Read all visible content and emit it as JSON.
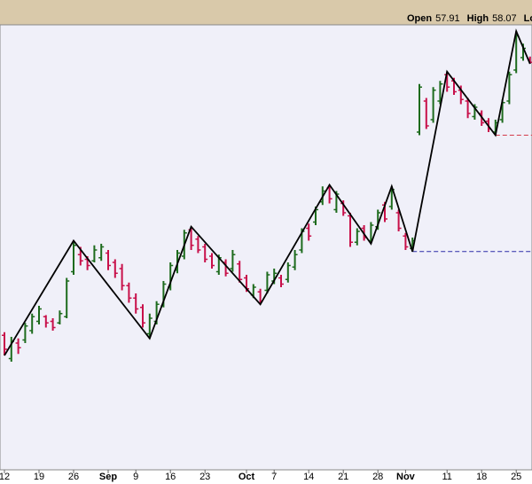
{
  "chart_data": {
    "type": "ohlc",
    "header": [
      {
        "label": "Open",
        "value": 57.91
      },
      {
        "label": "High",
        "value": 58.07
      },
      {
        "label": "Low"
      }
    ],
    "categories": [
      "12",
      null,
      null,
      null,
      null,
      "19",
      null,
      null,
      null,
      null,
      "26",
      null,
      null,
      null,
      null,
      "Sep",
      null,
      null,
      null,
      "9",
      null,
      null,
      null,
      null,
      "16",
      null,
      null,
      null,
      null,
      "23",
      null,
      null,
      null,
      null,
      null,
      "Oct",
      null,
      null,
      null,
      "7",
      null,
      null,
      null,
      null,
      "14",
      null,
      null,
      null,
      null,
      "21",
      null,
      null,
      null,
      null,
      "28",
      null,
      null,
      null,
      "Nov",
      null,
      null,
      null,
      null,
      null,
      "11",
      null,
      null,
      null,
      null,
      "18",
      null,
      null,
      null,
      null,
      "25",
      null,
      null
    ],
    "open": [
      40.1,
      38.6,
      39.6,
      39.8,
      40.4,
      41.0,
      41.3,
      41.0,
      40.9,
      41.3,
      44.2,
      45.3,
      45.0,
      44.9,
      45.1,
      45.4,
      44.8,
      44.4,
      43.3,
      42.5,
      41.9,
      40.2,
      41.0,
      42.0,
      43.2,
      44.3,
      45.2,
      46.9,
      46.3,
      45.8,
      45.2,
      44.2,
      44.8,
      44.4,
      44.7,
      43.8,
      42.7,
      42.9,
      43.0,
      43.6,
      43.8,
      43.7,
      44.5,
      45.6,
      47.0,
      47.4,
      48.7,
      49.6,
      48.2,
      48.6,
      47.8,
      46.1,
      47.0,
      46.2,
      47.1,
      48.5,
      48.4,
      48.0,
      46.5,
      45.7,
      53.2,
      55.2,
      54.0,
      55.2,
      56.9,
      56.5,
      55.9,
      55.2,
      54.2,
      54.4,
      53.9,
      53.2,
      54.0,
      55.2,
      57.2,
      58.0,
      57.91
    ],
    "high": [
      40.3,
      40.0,
      39.9,
      40.9,
      41.5,
      42.0,
      41.4,
      41.2,
      41.7,
      43.8,
      46.2,
      45.8,
      45.2,
      45.9,
      46.0,
      45.6,
      45.0,
      44.7,
      43.5,
      42.8,
      42.1,
      41.5,
      42.3,
      43.6,
      44.8,
      45.6,
      46.9,
      47.1,
      46.5,
      46.0,
      45.4,
      45.3,
      45.0,
      45.6,
      44.9,
      44.0,
      43.4,
      43.1,
      44.2,
      44.4,
      44.0,
      44.8,
      45.6,
      47.0,
      47.3,
      48.4,
      49.7,
      49.8,
      49.4,
      48.8,
      48.0,
      47.0,
      47.2,
      47.4,
      48.2,
      48.7,
      49.7,
      48.2,
      46.7,
      46.4,
      56.3,
      55.4,
      56.1,
      56.5,
      57.1,
      56.7,
      56.2,
      55.4,
      55.0,
      54.6,
      54.1,
      54.0,
      55.3,
      57.1,
      59.7,
      58.9,
      58.07
    ],
    "low": [
      38.8,
      38.4,
      38.9,
      39.6,
      40.2,
      40.8,
      40.6,
      40.4,
      40.8,
      41.2,
      44.0,
      44.6,
      44.3,
      44.8,
      44.9,
      44.3,
      43.8,
      43.0,
      42.2,
      41.5,
      40.6,
      39.9,
      40.8,
      41.9,
      43.0,
      44.1,
      45.0,
      45.6,
      45.4,
      44.8,
      44.4,
      44.0,
      43.9,
      44.2,
      43.5,
      42.9,
      42.5,
      42.1,
      42.8,
      43.4,
      43.2,
      43.5,
      44.3,
      45.4,
      46.2,
      47.2,
      48.5,
      48.6,
      48.0,
      47.8,
      45.8,
      45.9,
      46.2,
      46.0,
      46.9,
      47.4,
      48.2,
      46.8,
      45.6,
      45.5,
      53.0,
      53.4,
      53.8,
      55.0,
      55.8,
      55.6,
      55.0,
      54.1,
      54.0,
      53.6,
      53.2,
      53.0,
      53.8,
      55.0,
      57.0,
      57.8,
      57.6
    ],
    "close": [
      39.2,
      39.7,
      39.3,
      40.7,
      41.3,
      41.8,
      40.9,
      40.6,
      41.5,
      43.6,
      45.9,
      44.9,
      44.6,
      45.6,
      45.8,
      44.6,
      44.1,
      43.3,
      42.5,
      41.8,
      40.9,
      41.2,
      42.1,
      43.4,
      44.6,
      45.4,
      46.7,
      45.9,
      45.6,
      45.0,
      44.6,
      45.1,
      44.1,
      45.3,
      43.7,
      43.1,
      43.2,
      42.3,
      44.0,
      44.1,
      43.4,
      44.6,
      45.3,
      46.8,
      46.5,
      48.2,
      49.4,
      48.9,
      49.2,
      48.0,
      46.1,
      46.8,
      46.4,
      47.2,
      48.0,
      47.6,
      49.5,
      47.0,
      45.8,
      46.2,
      56.1,
      53.6,
      55.9,
      56.3,
      56.1,
      55.8,
      55.3,
      54.4,
      54.8,
      53.8,
      53.4,
      53.8,
      55.1,
      56.9,
      59.4,
      58.6,
      57.7
    ],
    "up_color": "#1d6b1d",
    "down_color": "#c8104a",
    "zigzag": {
      "color": "#000000",
      "x": [
        0,
        10,
        21,
        27,
        37,
        47,
        53,
        56,
        59,
        64,
        71,
        74,
        76
      ],
      "values": [
        38.8,
        46.2,
        39.9,
        47.1,
        42.1,
        49.8,
        46.0,
        49.7,
        45.5,
        57.1,
        53.0,
        59.7,
        57.6
      ]
    },
    "levels": [
      {
        "value": 45.5,
        "from": 59,
        "color": "#2a2aa8"
      },
      {
        "value": 53.0,
        "from": 71,
        "color": "#d43a4a"
      }
    ],
    "ylim": [
      32,
      60
    ]
  }
}
